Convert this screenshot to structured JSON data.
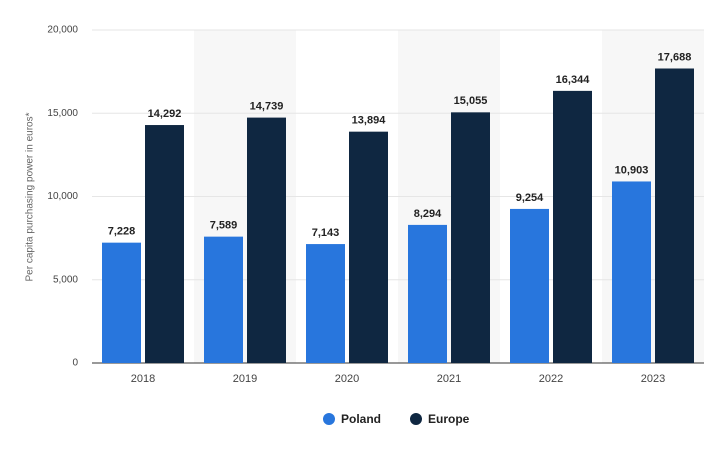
{
  "chart_data": {
    "type": "bar",
    "y_label": "Per capita purchasing power in euros*",
    "categories": [
      "2018",
      "2019",
      "2020",
      "2021",
      "2022",
      "2023"
    ],
    "series": [
      {
        "name": "Poland",
        "color": "#2876dd",
        "values": [
          7228,
          7589,
          7143,
          8294,
          9254,
          10903
        ],
        "value_labels": [
          "7,228",
          "7,589",
          "7,143",
          "8,294",
          "9,254",
          "10,903"
        ]
      },
      {
        "name": "Europe",
        "color": "#0f2741",
        "values": [
          14292,
          14739,
          13894,
          15055,
          16344,
          17688
        ],
        "value_labels": [
          "14,292",
          "14,739",
          "13,894",
          "15,055",
          "16,344",
          "17,688"
        ]
      }
    ],
    "ylim": [
      0,
      20000
    ],
    "yticks": [
      0,
      {
        "value": 5000,
        "label": "5,000"
      },
      {
        "value": 10000,
        "label": "10,000"
      },
      {
        "value": 15000,
        "label": "15,000"
      },
      {
        "value": 20000,
        "label": "20,000"
      }
    ],
    "grid": true,
    "legend": "bottom"
  }
}
